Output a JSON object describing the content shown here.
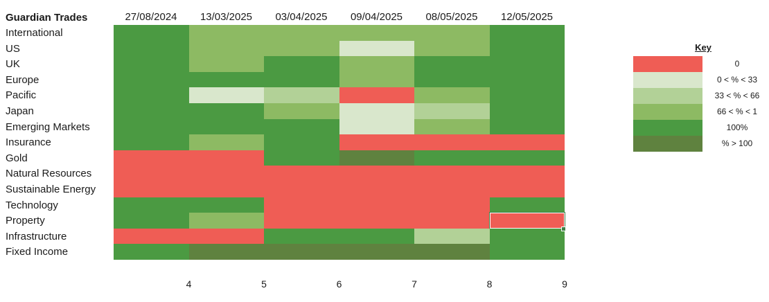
{
  "sheet": {
    "title": "Guardian Trades",
    "columns": [
      "27/08/2024",
      "13/03/2025",
      "03/04/2025",
      "09/04/2025",
      "08/05/2025",
      "12/05/2025"
    ],
    "column_numbers": [
      "4",
      "5",
      "6",
      "7",
      "8",
      "9"
    ],
    "rows": [
      {
        "label": "International",
        "levels": [
          "full",
          "high",
          "high",
          "high",
          "high",
          "full"
        ]
      },
      {
        "label": "US",
        "levels": [
          "full",
          "high",
          "high",
          "low",
          "high",
          "full"
        ]
      },
      {
        "label": "UK",
        "levels": [
          "full",
          "high",
          "full",
          "high",
          "full",
          "full"
        ]
      },
      {
        "label": "Europe",
        "levels": [
          "full",
          "full",
          "full",
          "high",
          "full",
          "full"
        ]
      },
      {
        "label": "Pacific",
        "levels": [
          "full",
          "low",
          "mid",
          "zero",
          "high",
          "full"
        ]
      },
      {
        "label": "Japan",
        "levels": [
          "full",
          "full",
          "high",
          "low",
          "mid",
          "full"
        ]
      },
      {
        "label": "Emerging Markets",
        "levels": [
          "full",
          "full",
          "full",
          "low",
          "high",
          "full"
        ]
      },
      {
        "label": "Insurance",
        "levels": [
          "full",
          "high",
          "full",
          "zero",
          "zero",
          "zero"
        ]
      },
      {
        "label": "Gold",
        "levels": [
          "zero",
          "zero",
          "full",
          "over",
          "full",
          "full"
        ]
      },
      {
        "label": "Natural Resources",
        "levels": [
          "zero",
          "zero",
          "zero",
          "zero",
          "zero",
          "zero"
        ]
      },
      {
        "label": "Sustainable Energy",
        "levels": [
          "zero",
          "zero",
          "zero",
          "zero",
          "zero",
          "zero"
        ]
      },
      {
        "label": "Technology",
        "levels": [
          "full",
          "full",
          "zero",
          "zero",
          "zero",
          "full"
        ]
      },
      {
        "label": "Property",
        "levels": [
          "full",
          "high",
          "zero",
          "zero",
          "zero",
          "zero"
        ]
      },
      {
        "label": "Infrastructure",
        "levels": [
          "zero",
          "zero",
          "full",
          "full",
          "mid",
          "full"
        ]
      },
      {
        "label": "Fixed Income",
        "levels": [
          "full",
          "over",
          "over",
          "over",
          "over",
          "full"
        ]
      }
    ],
    "selected_cell": {
      "row": 12,
      "col": 5
    }
  },
  "key": {
    "title": "Key",
    "items": [
      {
        "level": "zero",
        "label": "0",
        "color": "#ef5d55"
      },
      {
        "level": "low",
        "label": "0 < % < 33",
        "color": "#d9e7cc"
      },
      {
        "level": "mid",
        "label": "33 < % < 66",
        "color": "#b2d197"
      },
      {
        "level": "high",
        "label": "66 < % < 1",
        "color": "#8dba63"
      },
      {
        "level": "full",
        "label": "100%",
        "color": "#4b9a42"
      },
      {
        "level": "over",
        "label": "% > 100",
        "color": "#5f823f"
      }
    ]
  }
}
